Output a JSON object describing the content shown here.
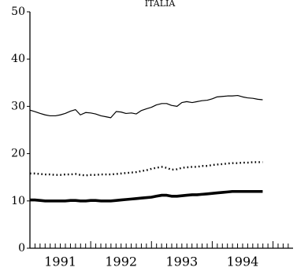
{
  "chart_data": {
    "type": "line",
    "title": "ITALIA",
    "xlabel": "",
    "ylabel": "",
    "xlim": [
      1990.5,
      1994.83
    ],
    "ylim": [
      0,
      50
    ],
    "yticks": [
      0,
      10,
      20,
      30,
      40,
      50
    ],
    "xtick_labels": [
      "1991",
      "1992",
      "1993",
      "1994"
    ],
    "grid": false,
    "legend": "none",
    "x": [
      1990.5,
      1990.58,
      1990.67,
      1990.75,
      1990.83,
      1990.92,
      1991.0,
      1991.08,
      1991.17,
      1991.25,
      1991.33,
      1991.42,
      1991.5,
      1991.58,
      1991.67,
      1991.75,
      1991.83,
      1991.92,
      1992.0,
      1992.08,
      1992.17,
      1992.25,
      1992.33,
      1992.42,
      1992.5,
      1992.58,
      1992.67,
      1992.75,
      1992.83,
      1992.92,
      1993.0,
      1993.08,
      1993.17,
      1993.25,
      1993.33,
      1993.42,
      1993.5,
      1993.58,
      1993.67,
      1993.75,
      1993.83,
      1993.92,
      1994.0,
      1994.08,
      1994.17,
      1994.25,
      1994.33
    ],
    "series": [
      {
        "style": "thin-solid",
        "color": "#000000",
        "values": [
          29.2,
          28.9,
          28.5,
          28.2,
          28.0,
          28.0,
          28.2,
          28.5,
          29.0,
          29.3,
          28.2,
          28.7,
          28.6,
          28.4,
          28.0,
          27.8,
          27.6,
          28.9,
          28.8,
          28.5,
          28.6,
          28.4,
          29.1,
          29.5,
          29.8,
          30.3,
          30.6,
          30.6,
          30.2,
          30.0,
          30.8,
          31.0,
          30.8,
          31.0,
          31.2,
          31.3,
          31.6,
          32.0,
          32.1,
          32.2,
          32.2,
          32.3,
          32.0,
          31.8,
          31.7,
          31.5,
          31.4
        ]
      },
      {
        "style": "dotted",
        "color": "#000000",
        "values": [
          15.8,
          15.8,
          15.7,
          15.6,
          15.6,
          15.5,
          15.5,
          15.6,
          15.6,
          15.7,
          15.5,
          15.4,
          15.5,
          15.5,
          15.6,
          15.6,
          15.6,
          15.7,
          15.8,
          15.9,
          16.0,
          16.1,
          16.3,
          16.5,
          16.8,
          17.0,
          17.2,
          17.0,
          16.6,
          16.7,
          17.0,
          17.1,
          17.2,
          17.2,
          17.4,
          17.4,
          17.6,
          17.7,
          17.8,
          17.9,
          18.0,
          18.0,
          18.1,
          18.1,
          18.2,
          18.2,
          18.2
        ]
      },
      {
        "style": "thick-solid",
        "color": "#000000",
        "values": [
          10.2,
          10.2,
          10.1,
          10.0,
          10.0,
          10.0,
          10.0,
          10.0,
          10.1,
          10.1,
          10.0,
          10.0,
          10.1,
          10.1,
          10.0,
          10.0,
          10.0,
          10.1,
          10.2,
          10.3,
          10.4,
          10.5,
          10.6,
          10.7,
          10.8,
          11.0,
          11.2,
          11.2,
          11.0,
          11.0,
          11.1,
          11.2,
          11.3,
          11.3,
          11.4,
          11.5,
          11.6,
          11.7,
          11.8,
          11.9,
          12.0,
          12.0,
          12.0,
          12.0,
          12.0,
          12.0,
          12.0
        ]
      }
    ]
  }
}
